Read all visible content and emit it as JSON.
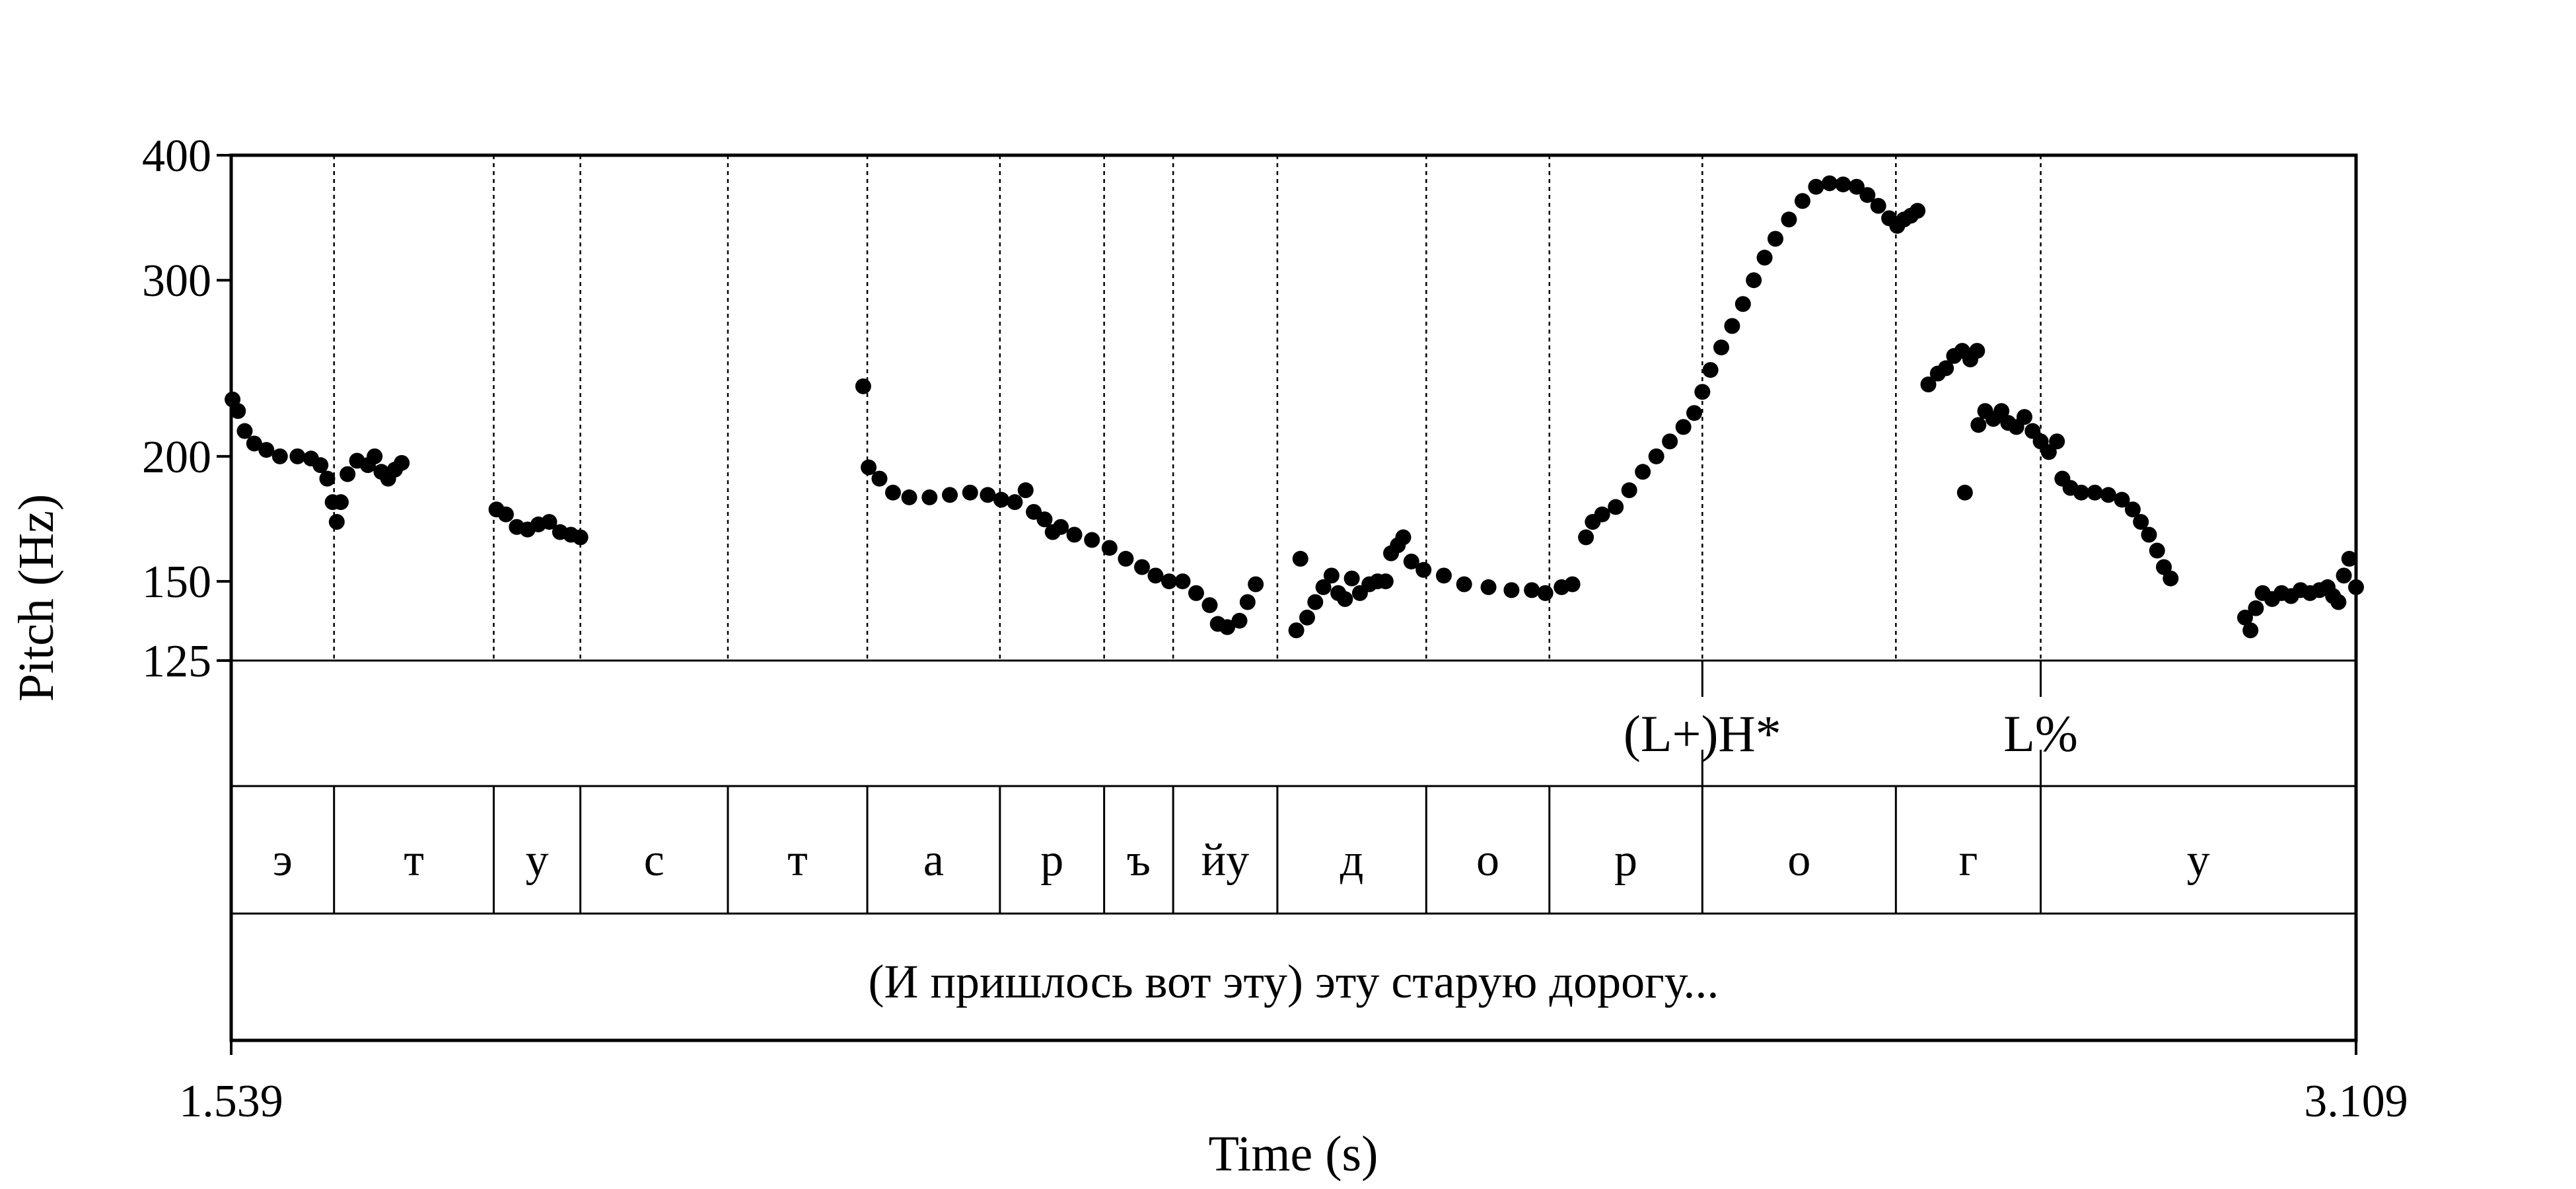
{
  "chart_data": {
    "type": "scatter",
    "title": "",
    "xlabel": "Time (s)",
    "ylabel": "Pitch (Hz)",
    "xlim": [
      1.539,
      3.109
    ],
    "ylim": [
      125,
      400
    ],
    "y_scale": "log",
    "x_ticks": [
      "1.539",
      "3.109"
    ],
    "y_ticks": [
      {
        "value": 125,
        "label": "125"
      },
      {
        "value": 150,
        "label": "150"
      },
      {
        "value": 200,
        "label": "200"
      },
      {
        "value": 300,
        "label": "300"
      },
      {
        "value": 400,
        "label": "400"
      }
    ],
    "grid": false,
    "boundaries": [
      1.615,
      1.733,
      1.797,
      1.906,
      2.009,
      2.107,
      2.184,
      2.235,
      2.312,
      2.422,
      2.513,
      2.626,
      2.769,
      2.876
    ],
    "tones": [
      {
        "t": 2.626,
        "label": "(L+)H*"
      },
      {
        "t": 2.876,
        "label": "L%"
      }
    ],
    "segments": [
      {
        "start": 1.539,
        "end": 1.615,
        "label": "э"
      },
      {
        "start": 1.615,
        "end": 1.733,
        "label": "т"
      },
      {
        "start": 1.733,
        "end": 1.797,
        "label": "у"
      },
      {
        "start": 1.797,
        "end": 1.906,
        "label": "с"
      },
      {
        "start": 1.906,
        "end": 2.009,
        "label": "т"
      },
      {
        "start": 2.009,
        "end": 2.107,
        "label": "а"
      },
      {
        "start": 2.107,
        "end": 2.184,
        "label": "р"
      },
      {
        "start": 2.184,
        "end": 2.235,
        "label": "ъ"
      },
      {
        "start": 2.235,
        "end": 2.312,
        "label": "йу"
      },
      {
        "start": 2.312,
        "end": 2.422,
        "label": "д"
      },
      {
        "start": 2.422,
        "end": 2.513,
        "label": "о"
      },
      {
        "start": 2.513,
        "end": 2.626,
        "label": "р"
      },
      {
        "start": 2.626,
        "end": 2.769,
        "label": "о"
      },
      {
        "start": 2.769,
        "end": 2.876,
        "label": "г"
      },
      {
        "start": 2.876,
        "end": 3.109,
        "label": "у"
      }
    ],
    "sentence": "(И пришлось вот эту) эту старую дорогу...",
    "pitch_runs": [
      [
        [
          1.54,
          228
        ],
        [
          1.544,
          222
        ],
        [
          1.549,
          212
        ],
        [
          1.556,
          206
        ],
        [
          1.565,
          203
        ],
        [
          1.575,
          200
        ],
        [
          1.588,
          200
        ],
        [
          1.598,
          199
        ],
        [
          1.605,
          196
        ],
        [
          1.61,
          190
        ],
        [
          1.614,
          180
        ],
        [
          1.617,
          172
        ],
        [
          1.62,
          180
        ],
        [
          1.625,
          192
        ],
        [
          1.632,
          198
        ],
        [
          1.64,
          196
        ],
        [
          1.645,
          200
        ],
        [
          1.65,
          193
        ],
        [
          1.655,
          190
        ],
        [
          1.66,
          194
        ],
        [
          1.665,
          197
        ]
      ],
      [
        [
          1.735,
          177
        ],
        [
          1.742,
          175
        ],
        [
          1.75,
          170
        ],
        [
          1.758,
          169
        ],
        [
          1.766,
          171
        ],
        [
          1.774,
          172
        ],
        [
          1.782,
          168
        ],
        [
          1.79,
          167
        ],
        [
          1.797,
          166
        ]
      ],
      [
        [
          2.006,
          235
        ]
      ],
      [
        [
          2.01,
          195
        ],
        [
          2.018,
          190
        ],
        [
          2.028,
          184
        ],
        [
          2.04,
          182
        ],
        [
          2.055,
          182
        ],
        [
          2.07,
          183
        ],
        [
          2.085,
          184
        ],
        [
          2.098,
          183
        ],
        [
          2.108,
          181
        ],
        [
          2.118,
          180
        ],
        [
          2.126,
          185
        ],
        [
          2.132,
          176
        ],
        [
          2.14,
          173
        ],
        [
          2.146,
          168
        ],
        [
          2.152,
          170
        ],
        [
          2.162,
          167
        ],
        [
          2.175,
          165
        ],
        [
          2.188,
          162
        ],
        [
          2.2,
          158
        ],
        [
          2.212,
          155
        ],
        [
          2.222,
          152
        ],
        [
          2.232,
          150
        ],
        [
          2.242,
          150
        ],
        [
          2.252,
          146
        ],
        [
          2.262,
          142
        ],
        [
          2.268,
          136
        ],
        [
          2.275,
          135
        ],
        [
          2.284,
          137
        ],
        [
          2.29,
          143
        ],
        [
          2.296,
          149
        ]
      ],
      [
        [
          2.326,
          134
        ],
        [
          2.334,
          138
        ],
        [
          2.329,
          158
        ],
        [
          2.34,
          143
        ],
        [
          2.346,
          148
        ],
        [
          2.352,
          152
        ],
        [
          2.357,
          146
        ],
        [
          2.362,
          144
        ],
        [
          2.367,
          151
        ],
        [
          2.373,
          146
        ],
        [
          2.38,
          149
        ],
        [
          2.386,
          150
        ],
        [
          2.392,
          150
        ]
      ],
      [
        [
          2.396,
          160
        ],
        [
          2.401,
          163
        ],
        [
          2.405,
          166
        ],
        [
          2.411,
          157
        ],
        [
          2.42,
          154
        ],
        [
          2.435,
          152
        ],
        [
          2.45,
          149
        ],
        [
          2.468,
          148
        ],
        [
          2.485,
          147
        ],
        [
          2.5,
          147
        ],
        [
          2.51,
          146
        ],
        [
          2.522,
          148
        ],
        [
          2.53,
          149
        ]
      ],
      [
        [
          2.54,
          166
        ],
        [
          2.545,
          172
        ],
        [
          2.552,
          175
        ],
        [
          2.562,
          178
        ],
        [
          2.572,
          185
        ],
        [
          2.582,
          193
        ],
        [
          2.592,
          200
        ],
        [
          2.602,
          207
        ],
        [
          2.612,
          214
        ],
        [
          2.62,
          221
        ],
        [
          2.626,
          232
        ],
        [
          2.632,
          244
        ],
        [
          2.64,
          257
        ],
        [
          2.648,
          270
        ],
        [
          2.656,
          284
        ],
        [
          2.664,
          300
        ],
        [
          2.672,
          316
        ],
        [
          2.68,
          330
        ],
        [
          2.69,
          345
        ],
        [
          2.7,
          360
        ],
        [
          2.71,
          372
        ],
        [
          2.72,
          375
        ],
        [
          2.73,
          374
        ],
        [
          2.74,
          372
        ],
        [
          2.748,
          365
        ],
        [
          2.756,
          356
        ],
        [
          2.764,
          346
        ],
        [
          2.77,
          340
        ],
        [
          2.775,
          345
        ],
        [
          2.78,
          348
        ],
        [
          2.785,
          352
        ]
      ],
      [
        [
          2.793,
          236
        ],
        [
          2.8,
          242
        ],
        [
          2.806,
          245
        ],
        [
          2.812,
          252
        ],
        [
          2.818,
          255
        ],
        [
          2.824,
          250
        ],
        [
          2.829,
          255
        ]
      ],
      [
        [
          2.82,
          184
        ]
      ],
      [
        [
          2.83,
          215
        ],
        [
          2.835,
          222
        ],
        [
          2.841,
          218
        ],
        [
          2.847,
          222
        ],
        [
          2.852,
          216
        ],
        [
          2.858,
          214
        ],
        [
          2.864,
          219
        ],
        [
          2.87,
          212
        ],
        [
          2.876,
          207
        ],
        [
          2.882,
          202
        ],
        [
          2.888,
          207
        ]
      ],
      [
        [
          2.892,
          190
        ],
        [
          2.898,
          186
        ],
        [
          2.906,
          184
        ],
        [
          2.916,
          184
        ],
        [
          2.926,
          183
        ],
        [
          2.936,
          181
        ],
        [
          2.944,
          177
        ],
        [
          2.95,
          172
        ],
        [
          2.956,
          167
        ],
        [
          2.962,
          161
        ],
        [
          2.967,
          155
        ],
        [
          2.972,
          151
        ]
      ],
      [
        [
          3.027,
          138
        ],
        [
          3.031,
          134
        ],
        [
          3.035,
          141
        ],
        [
          3.04,
          146
        ],
        [
          3.047,
          144
        ],
        [
          3.054,
          146
        ],
        [
          3.061,
          145
        ],
        [
          3.068,
          147
        ],
        [
          3.075,
          146
        ],
        [
          3.082,
          147
        ],
        [
          3.088,
          148
        ],
        [
          3.092,
          145
        ],
        [
          3.096,
          143
        ],
        [
          3.1,
          152
        ],
        [
          3.104,
          158
        ],
        [
          3.109,
          148
        ]
      ]
    ]
  }
}
